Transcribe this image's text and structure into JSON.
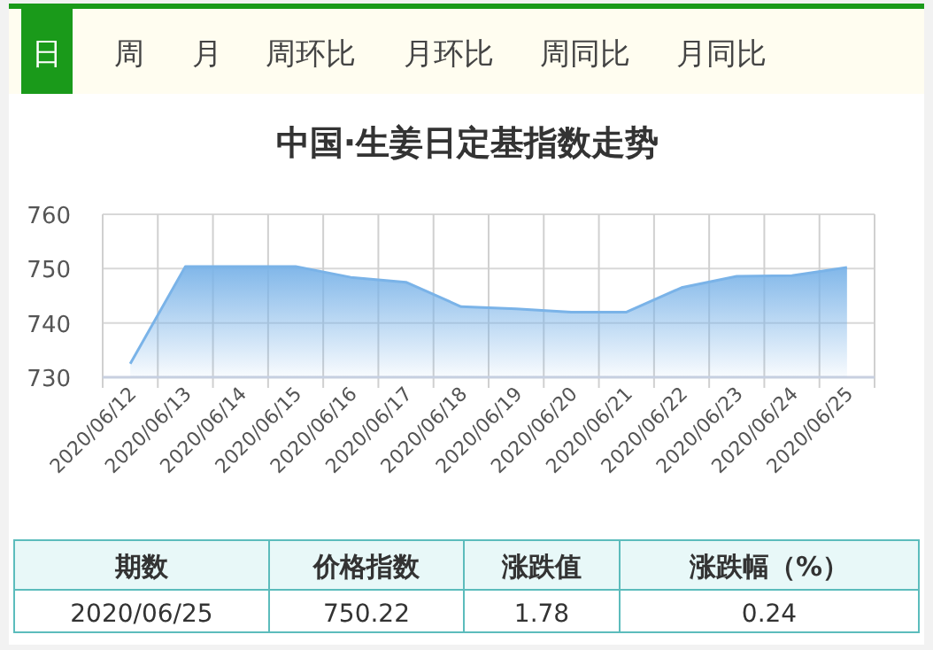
{
  "chart_data": {
    "type": "area",
    "title": "中国·生姜日定基指数走势",
    "categories": [
      "2020/06/12",
      "2020/06/13",
      "2020/06/14",
      "2020/06/15",
      "2020/06/16",
      "2020/06/17",
      "2020/06/18",
      "2020/06/19",
      "2020/06/20",
      "2020/06/21",
      "2020/06/22",
      "2020/06/23",
      "2020/06/24",
      "2020/06/25"
    ],
    "series": [
      {
        "color": "#7ab3e8",
        "values": [
          732.5,
          750.4,
          750.4,
          750.4,
          748.4,
          747.5,
          743,
          742.6,
          742,
          742,
          746.5,
          748.6,
          748.7,
          750.2
        ]
      }
    ],
    "ylim": [
      730,
      760
    ],
    "yticks": [
      730,
      740,
      750,
      760
    ],
    "grid": true,
    "annotations": [
      "日",
      "周",
      "月",
      "周环比",
      "月环比",
      "周同比",
      "月同比",
      "期数",
      "价格指数",
      "涨跌值",
      "涨跌幅（%）",
      "2020/06/25",
      "750.22",
      "1.78",
      "0.24"
    ]
  }
}
